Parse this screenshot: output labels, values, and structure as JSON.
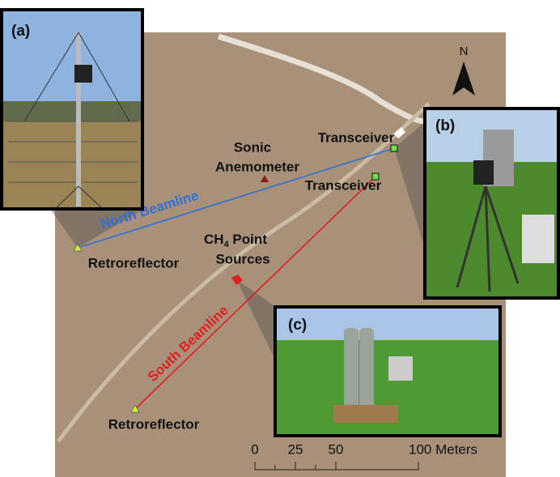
{
  "panels": {
    "a": "(a)",
    "b": "(b)",
    "c": "(c)"
  },
  "north_arrow": "N",
  "labels": {
    "transceiver_north": "Transceiver",
    "transceiver_south": "Transceiver",
    "anemometer": [
      "Sonic",
      "Anemometer"
    ],
    "north_beamline": "North Beamline",
    "south_beamline": "South Beamline",
    "retroreflector_north": "Retroreflector",
    "retroreflector_south": "Retroreflector",
    "point_sources": {
      "chem": "CH",
      "sub": "4",
      "line1": " Point",
      "line2": "Sources"
    }
  },
  "scale_bar": {
    "labels": [
      "0",
      "25",
      "50",
      "100 Meters"
    ]
  }
}
